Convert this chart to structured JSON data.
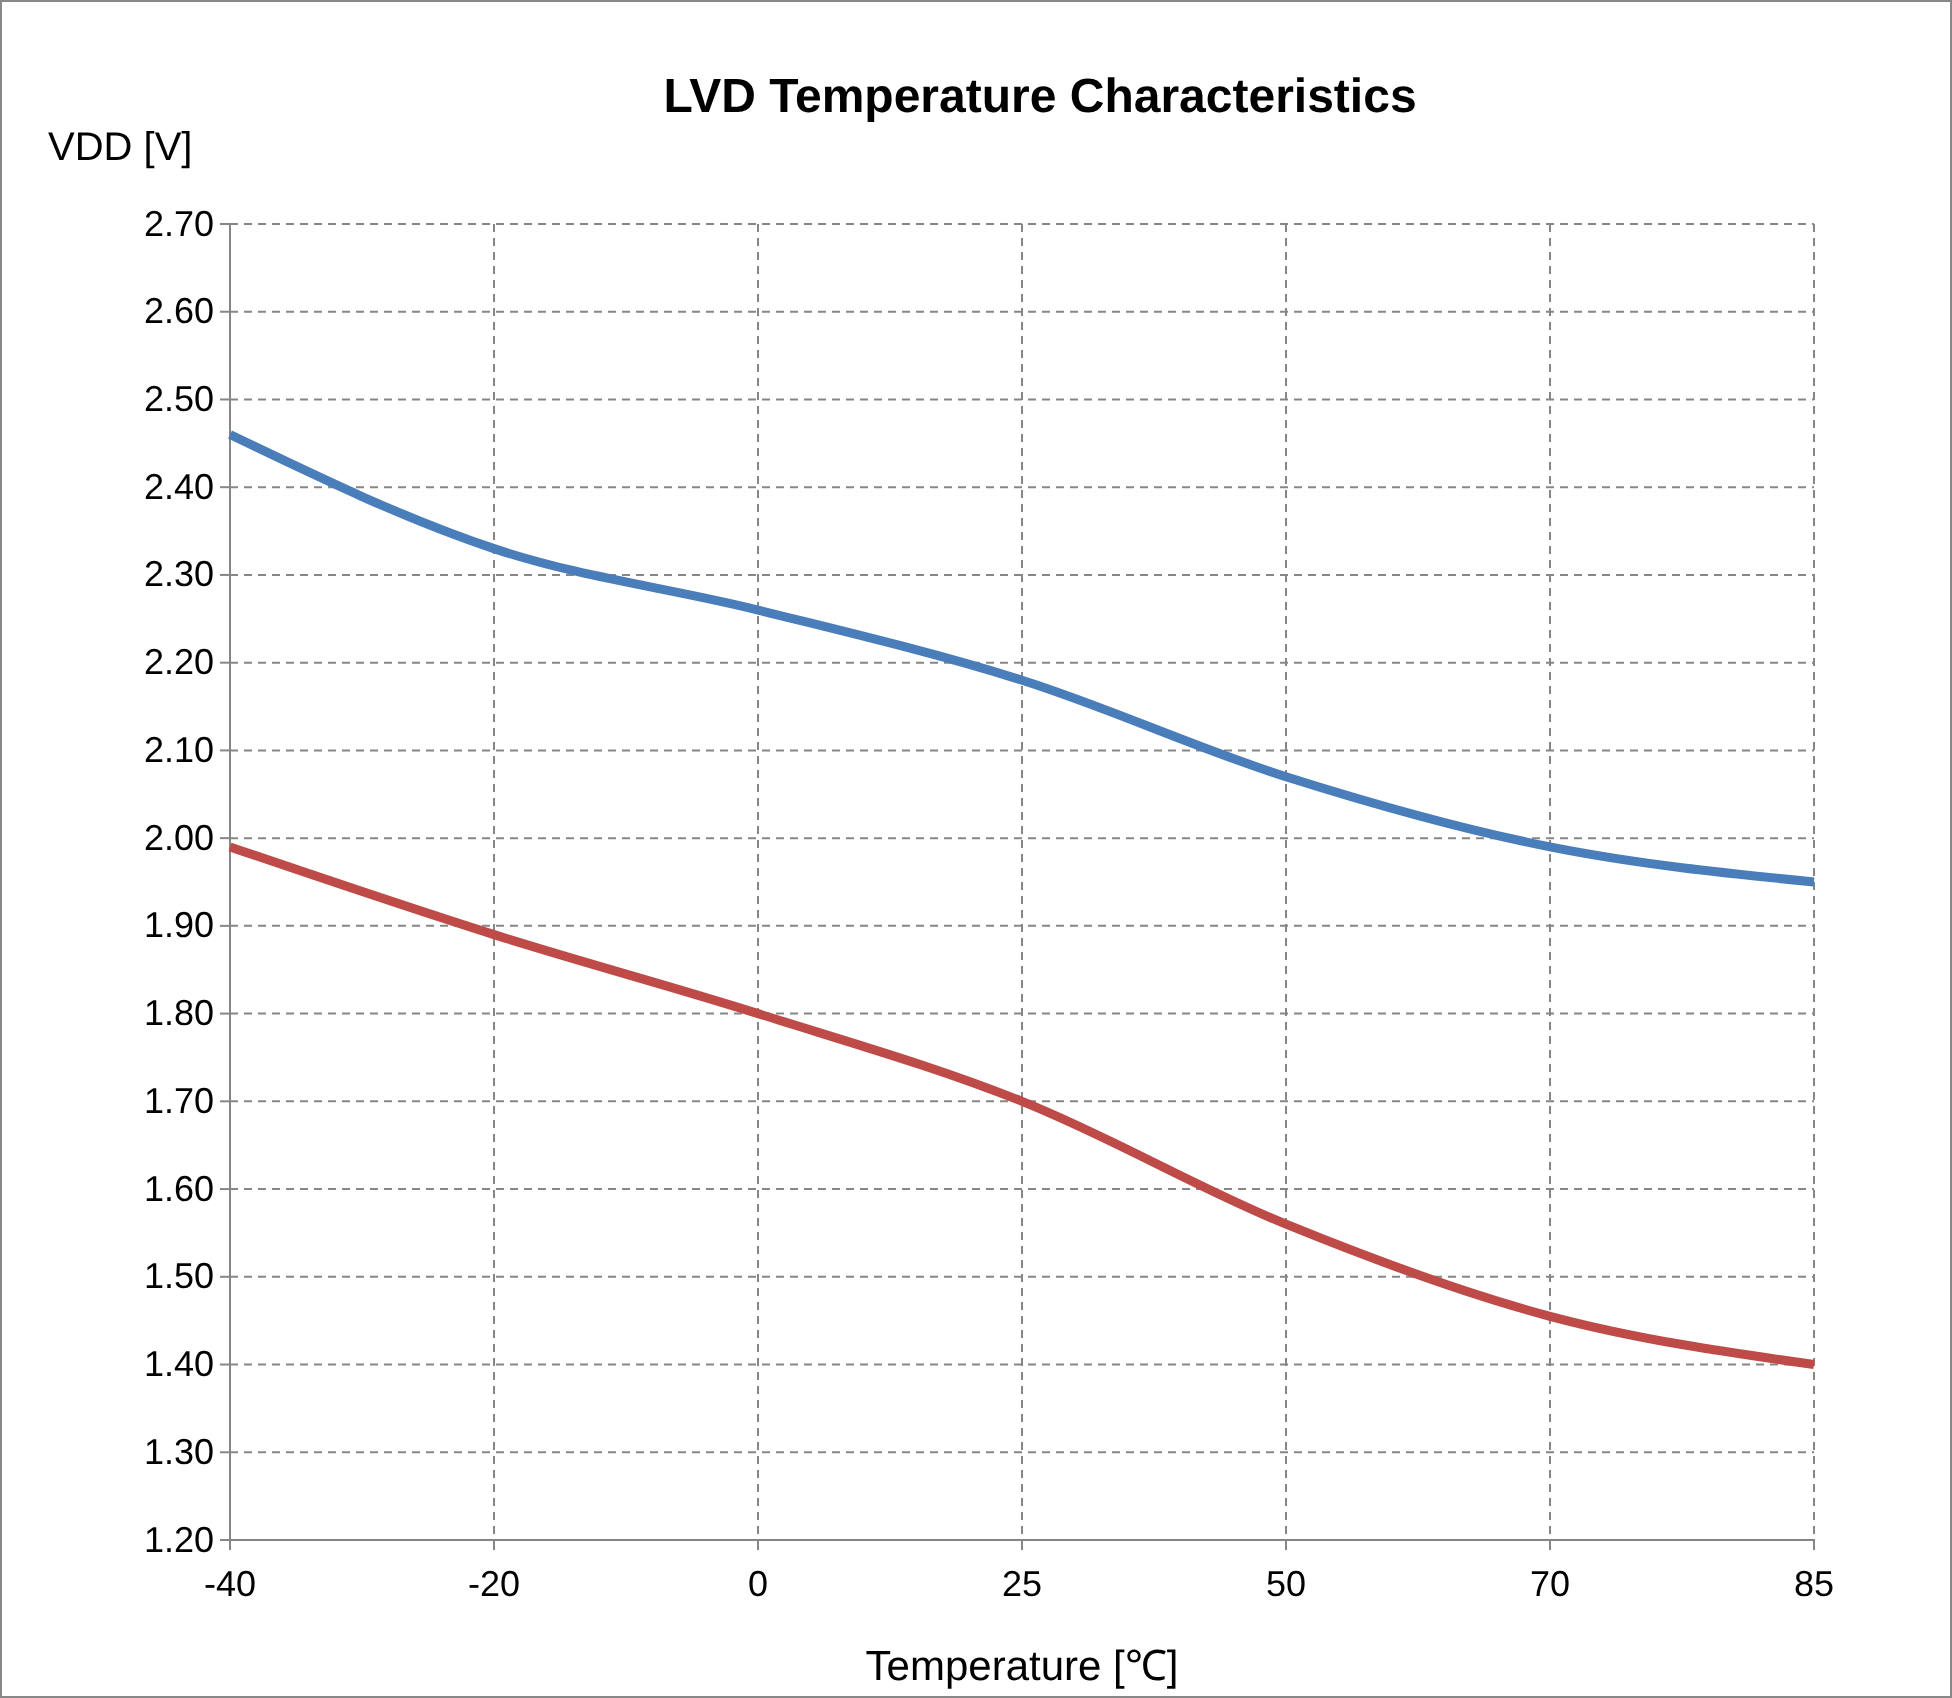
{
  "chart_data": {
    "type": "line",
    "title": "LVD Temperature Characteristics",
    "xlabel": "Temperature [℃]",
    "ylabel": "VDD [V]",
    "categories": [
      "-40",
      "-20",
      "0",
      "25",
      "50",
      "70",
      "85"
    ],
    "series": [
      {
        "color": "#4a7ebb",
        "values": [
          2.46,
          2.33,
          2.26,
          2.18,
          2.07,
          1.99,
          1.95
        ]
      },
      {
        "color": "#be4b48",
        "values": [
          1.99,
          1.89,
          1.8,
          1.7,
          1.56,
          1.455,
          1.4
        ]
      }
    ],
    "ylim": [
      1.2,
      2.7
    ],
    "yticks": [
      {
        "value": 1.2,
        "label": "1.20"
      },
      {
        "value": 1.3,
        "label": "1.30"
      },
      {
        "value": 1.4,
        "label": "1.40"
      },
      {
        "value": 1.5,
        "label": "1.50"
      },
      {
        "value": 1.6,
        "label": "1.60"
      },
      {
        "value": 1.7,
        "label": "1.70"
      },
      {
        "value": 1.8,
        "label": "1.80"
      },
      {
        "value": 1.9,
        "label": "1.90"
      },
      {
        "value": 2.0,
        "label": "2.00"
      },
      {
        "value": 2.1,
        "label": "2.10"
      },
      {
        "value": 2.2,
        "label": "2.20"
      },
      {
        "value": 2.3,
        "label": "2.30"
      },
      {
        "value": 2.4,
        "label": "2.40"
      },
      {
        "value": 2.5,
        "label": "2.50"
      },
      {
        "value": 2.6,
        "label": "2.60"
      },
      {
        "value": 2.7,
        "label": "2.70"
      }
    ],
    "grid": true,
    "marker": "none",
    "line_style": "solid"
  }
}
